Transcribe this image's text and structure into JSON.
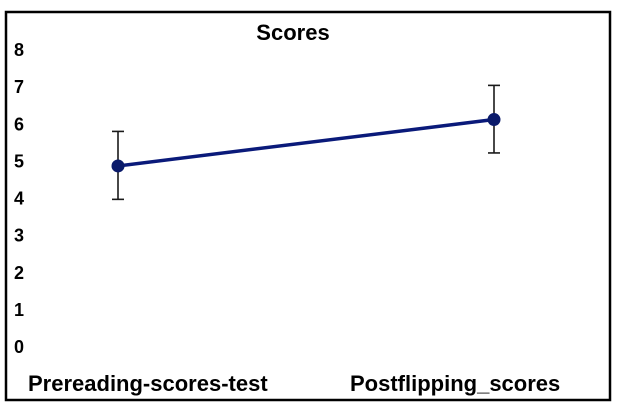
{
  "chart_data": {
    "type": "line",
    "title": "Scores",
    "xlabel": "",
    "ylabel": "",
    "categories": [
      "Prereading-scores-test",
      "Postflipping_scores"
    ],
    "series": [
      {
        "values": [
          4.85,
          6.1
        ],
        "error_low": [
          3.95,
          5.2
        ],
        "error_high": [
          5.78,
          7.02
        ]
      }
    ],
    "yticks": [
      "0",
      "1",
      "2",
      "3",
      "4",
      "5",
      "6",
      "7",
      "8"
    ],
    "ylim": [
      0,
      8
    ],
    "grid": false,
    "legend": "none",
    "colors": {
      "line": "#0a1a7a",
      "marker": "#0a1a6a",
      "error_bar": "#1a1a1a",
      "frame": "#000000"
    }
  }
}
